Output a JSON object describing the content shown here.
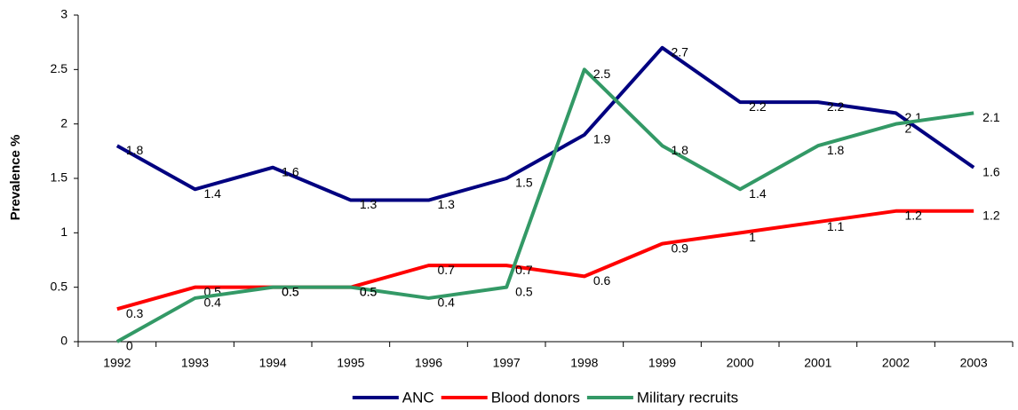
{
  "chart_data": {
    "type": "line",
    "y_label": "Prevalence %",
    "categories": [
      "1992",
      "1993",
      "1994",
      "1995",
      "1996",
      "1997",
      "1998",
      "1999",
      "2000",
      "2001",
      "2002",
      "2003"
    ],
    "series": [
      {
        "name": "ANC",
        "color": "#000080",
        "values": [
          1.8,
          1.4,
          1.6,
          1.3,
          1.3,
          1.5,
          1.9,
          2.7,
          2.2,
          2.2,
          2.1,
          1.6
        ]
      },
      {
        "name": "Blood donors",
        "color": "#ff0000",
        "values": [
          0.3,
          0.5,
          0.5,
          0.5,
          0.7,
          0.7,
          0.6,
          0.9,
          1,
          1.1,
          1.2,
          1.2
        ]
      },
      {
        "name": "Military recruits",
        "color": "#339966",
        "values": [
          0,
          0.4,
          0.5,
          0.5,
          0.4,
          0.5,
          2.5,
          1.8,
          1.4,
          1.8,
          2,
          2.1
        ]
      }
    ],
    "ylim": [
      0,
      3
    ],
    "yticks": [
      0,
      0.5,
      1,
      1.5,
      2,
      2.5,
      3
    ],
    "legend": "bottom"
  }
}
